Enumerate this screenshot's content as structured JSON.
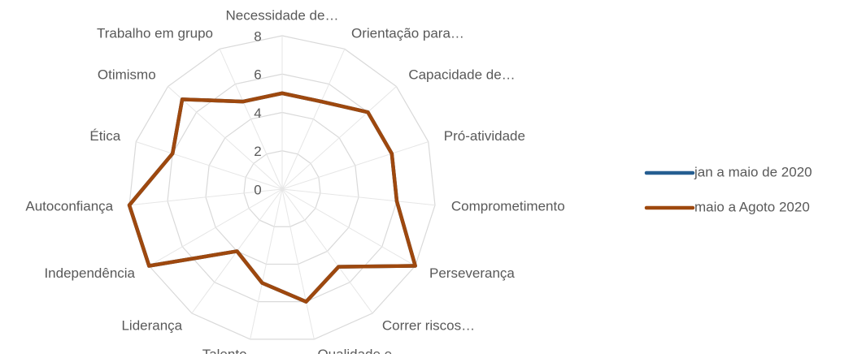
{
  "chart_data": {
    "type": "radar",
    "categories": [
      "Necessidade de…",
      "Orientação para…",
      "Capacidade de…",
      "Pró-atividade",
      "Comprometimento",
      "Perseverança",
      "Correr riscos…",
      "Qualidade e…",
      "Talento",
      "Liderança",
      "Independência",
      "Autoconfiança",
      "Ética",
      "Otimismo",
      "Trabalho em grupo"
    ],
    "series": [
      {
        "name": "jan a maio de 2020",
        "color": "#255e91",
        "values": [
          5,
          5,
          6,
          6,
          6,
          8,
          5,
          6,
          5,
          4,
          8,
          8,
          6,
          7,
          5
        ]
      },
      {
        "name": "maio a Agoto 2020",
        "color": "#9e480e",
        "values": [
          5,
          5,
          6,
          6,
          6,
          8,
          5,
          6,
          5,
          4,
          8,
          8,
          6,
          7,
          5
        ]
      }
    ],
    "ylim": [
      0,
      8
    ],
    "yticks": [
      0,
      2,
      4,
      6,
      8
    ],
    "grid": true,
    "legend": "right"
  }
}
